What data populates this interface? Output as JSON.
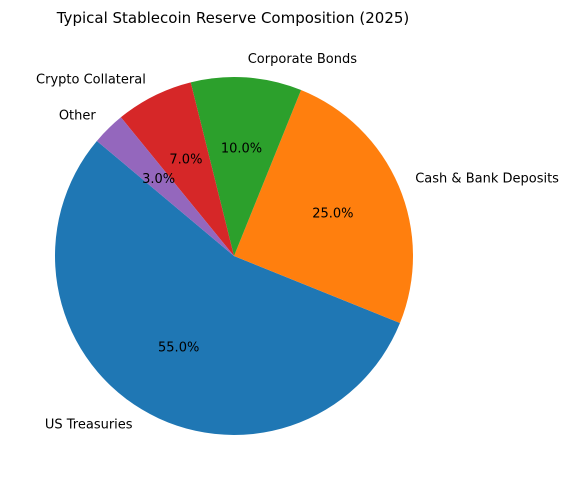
{
  "chart_data": {
    "type": "pie",
    "title": "Typical Stablecoin Reserve Composition (2025)",
    "categories": [
      "US Treasuries",
      "Cash & Bank Deposits",
      "Corporate Bonds",
      "Crypto Collateral",
      "Other"
    ],
    "values": [
      55.0,
      25.0,
      10.0,
      7.0,
      3.0
    ],
    "percent_labels": [
      "55.0%",
      "25.0%",
      "10.0%",
      "7.0%",
      "3.0%"
    ],
    "colors": [
      "#1f77b4",
      "#ff7f0e",
      "#2ca02c",
      "#d62728",
      "#9467bd"
    ],
    "start_angle_deg": 140,
    "direction": "counterclockwise",
    "legend": "none"
  }
}
